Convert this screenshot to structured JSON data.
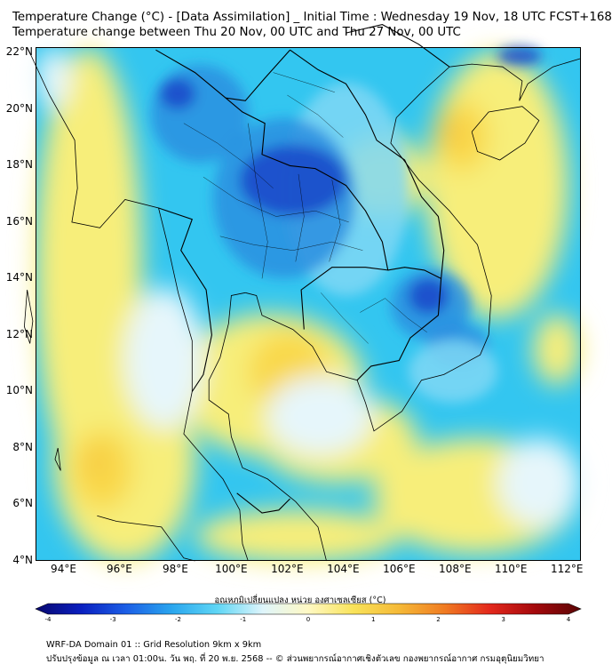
{
  "header": {
    "title_line1": "Temperature Change (°C) - [Data Assimilation] _ Initial Time : Wednesday 19 Nov, 18 UTC FCST+168",
    "title_line2": "Temperature change between Thu 20 Nov, 00 UTC and Thu 27 Nov, 00 UTC"
  },
  "map": {
    "lat_ticks": [
      "22°N",
      "20°N",
      "18°N",
      "16°N",
      "14°N",
      "12°N",
      "10°N",
      "8°N",
      "6°N",
      "4°N"
    ],
    "lon_ticks": [
      "94°E",
      "96°E",
      "98°E",
      "100°E",
      "102°E",
      "104°E",
      "106°E",
      "108°E",
      "110°E",
      "112°E"
    ],
    "lon_range": [
      93,
      112.5
    ],
    "lat_range": [
      4,
      22.2
    ],
    "colors": {
      "background": "#33c6f0",
      "warm_light": "#f7ee7a",
      "warm": "#f9d84a",
      "warm_strong": "#f0a33a",
      "neutral": "#e6f6fb",
      "cool_light": "#7fd7f4",
      "cool": "#2a8fe0",
      "cool_strong": "#1747c9",
      "coast": "#000000"
    }
  },
  "colorbar": {
    "label": "อุณหภูมิเปลี่ยนแปลง หน่วย องศาเซลเซียส (°C)",
    "ticks": [
      "-4",
      "-3",
      "-2",
      "-1",
      "0",
      "1",
      "2",
      "3",
      "4"
    ],
    "range": [
      -4,
      4
    ],
    "colors": [
      "#08086e",
      "#0a1fbf",
      "#1c5fe6",
      "#2aa6ee",
      "#5fd6f5",
      "#dff5fb",
      "#fff9c4",
      "#f9e35a",
      "#f5b937",
      "#f07b22",
      "#e3281c",
      "#a3080c",
      "#5a0505"
    ]
  },
  "footer": {
    "line1": "WRF-DA Domain 01 :: Grid Resolution 9km x 9km",
    "line2": "ปรับปรุงข้อมูล ณ เวลา 01:00น. วัน พฤ. ที่ 20 พ.ย. 2568 -- © ส่วนพยากรณ์อากาศเชิงตัวเลข กองพยากรณ์อากาศ กรมอุตุนิยมวิทยา"
  }
}
